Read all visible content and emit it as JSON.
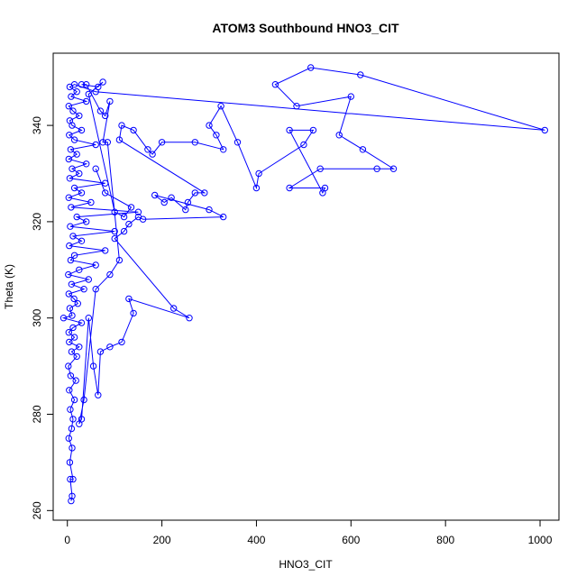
{
  "chart_data": {
    "type": "scatter",
    "title": "ATOM3 Southbound HNO3_CIT",
    "xlabel": "HNO3_CIT",
    "ylabel": "Theta (K)",
    "xlim": [
      -30,
      1040
    ],
    "ylim": [
      258,
      355
    ],
    "xticks": [
      0,
      200,
      400,
      600,
      800,
      1000
    ],
    "yticks": [
      260,
      280,
      300,
      320,
      340
    ],
    "grid": false,
    "legend": "none",
    "series_color": "#0000ff",
    "points": [
      [
        8,
        262
      ],
      [
        10,
        263
      ],
      [
        6,
        266.5
      ],
      [
        12,
        266.5
      ],
      [
        5,
        270
      ],
      [
        10,
        273
      ],
      [
        3,
        275
      ],
      [
        9,
        277
      ],
      [
        12,
        279
      ],
      [
        6,
        281
      ],
      [
        15,
        283
      ],
      [
        4,
        285
      ],
      [
        18,
        287
      ],
      [
        7,
        288
      ],
      [
        2,
        290
      ],
      [
        20,
        292
      ],
      [
        9,
        293
      ],
      [
        25,
        294
      ],
      [
        4,
        295
      ],
      [
        15,
        296
      ],
      [
        3,
        297
      ],
      [
        12,
        298
      ],
      [
        30,
        299
      ],
      [
        -8,
        300
      ],
      [
        10,
        300.5
      ],
      [
        5,
        302
      ],
      [
        22,
        303
      ],
      [
        14,
        304
      ],
      [
        3,
        305
      ],
      [
        35,
        306
      ],
      [
        9,
        307
      ],
      [
        45,
        308
      ],
      [
        2,
        309
      ],
      [
        25,
        310
      ],
      [
        60,
        311
      ],
      [
        7,
        312
      ],
      [
        15,
        313
      ],
      [
        80,
        314
      ],
      [
        4,
        315
      ],
      [
        30,
        316
      ],
      [
        12,
        317
      ],
      [
        100,
        318
      ],
      [
        6,
        319
      ],
      [
        40,
        320
      ],
      [
        20,
        321
      ],
      [
        150,
        322
      ],
      [
        8,
        323
      ],
      [
        50,
        324
      ],
      [
        3,
        325
      ],
      [
        30,
        326
      ],
      [
        15,
        327
      ],
      [
        80,
        328
      ],
      [
        5,
        329
      ],
      [
        25,
        330
      ],
      [
        10,
        331
      ],
      [
        40,
        332
      ],
      [
        3,
        333
      ],
      [
        20,
        334
      ],
      [
        7,
        335
      ],
      [
        60,
        336
      ],
      [
        15,
        337
      ],
      [
        4,
        338
      ],
      [
        30,
        339
      ],
      [
        10,
        340
      ],
      [
        5,
        341
      ],
      [
        25,
        342
      ],
      [
        12,
        343
      ],
      [
        3,
        344
      ],
      [
        40,
        345
      ],
      [
        8,
        346
      ],
      [
        20,
        347
      ],
      [
        5,
        348
      ],
      [
        15,
        348.5
      ],
      [
        60,
        347
      ],
      [
        1010,
        339
      ],
      [
        620,
        350.5
      ],
      [
        515,
        352
      ],
      [
        440,
        348.5
      ],
      [
        485,
        344
      ],
      [
        600,
        346
      ],
      [
        575,
        338
      ],
      [
        625,
        335
      ],
      [
        690,
        331
      ],
      [
        655,
        331
      ],
      [
        535,
        331
      ],
      [
        470,
        327
      ],
      [
        545,
        327
      ],
      [
        540,
        326
      ],
      [
        470,
        339
      ],
      [
        520,
        339
      ],
      [
        500,
        336
      ],
      [
        405,
        330
      ],
      [
        400,
        327
      ],
      [
        360,
        336.5
      ],
      [
        325,
        344
      ],
      [
        300,
        340
      ],
      [
        315,
        338
      ],
      [
        330,
        335
      ],
      [
        270,
        336.5
      ],
      [
        200,
        336.5
      ],
      [
        180,
        334
      ],
      [
        170,
        335
      ],
      [
        140,
        339
      ],
      [
        115,
        340
      ],
      [
        110,
        337
      ],
      [
        290,
        326
      ],
      [
        270,
        326
      ],
      [
        255,
        324
      ],
      [
        250,
        322.5
      ],
      [
        220,
        325
      ],
      [
        205,
        324
      ],
      [
        185,
        325.5
      ],
      [
        300,
        322.5
      ],
      [
        330,
        321
      ],
      [
        160,
        320.5
      ],
      [
        150,
        321
      ],
      [
        130,
        319.5
      ],
      [
        120,
        318
      ],
      [
        100,
        316.5
      ],
      [
        225,
        302
      ],
      [
        258,
        300
      ],
      [
        130,
        304
      ],
      [
        140,
        301
      ],
      [
        115,
        295
      ],
      [
        90,
        294
      ],
      [
        70,
        293
      ],
      [
        65,
        284
      ],
      [
        55,
        290
      ],
      [
        45,
        300
      ],
      [
        30,
        279
      ],
      [
        25,
        278
      ],
      [
        35,
        283
      ],
      [
        60,
        306
      ],
      [
        90,
        309
      ],
      [
        110,
        312
      ],
      [
        85,
        336.5
      ],
      [
        75,
        336.5
      ],
      [
        90,
        345
      ],
      [
        80,
        342
      ],
      [
        70,
        343
      ],
      [
        40,
        348.5
      ],
      [
        30,
        348.5
      ],
      [
        65,
        348
      ],
      [
        75,
        349
      ],
      [
        45,
        346.5
      ],
      [
        100,
        322
      ],
      [
        120,
        321
      ],
      [
        135,
        323
      ],
      [
        80,
        326
      ],
      [
        60,
        331
      ]
    ]
  }
}
